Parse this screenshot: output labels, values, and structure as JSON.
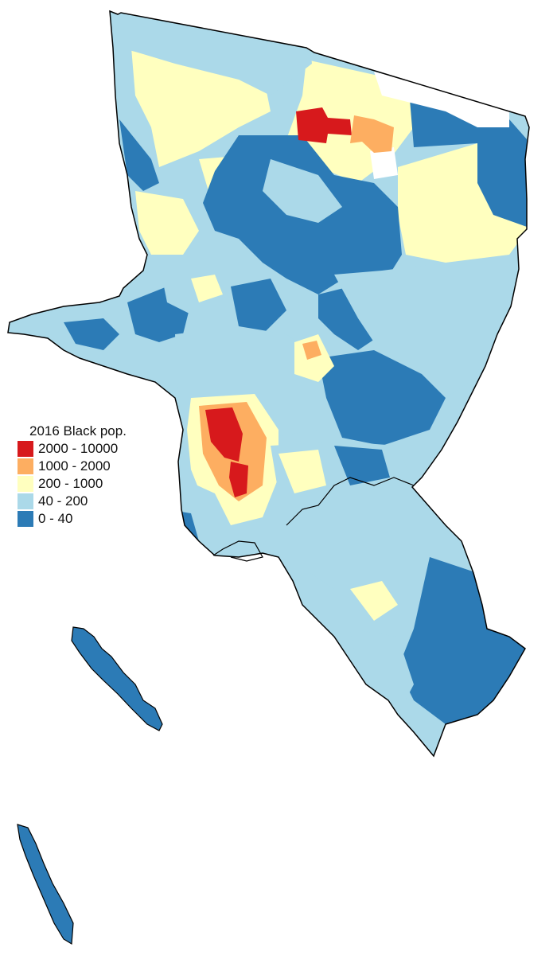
{
  "colors": {
    "class_2000_10000": "#d7191c",
    "class_1000_2000": "#fdae61",
    "class_200_1000": "#ffffbf",
    "class_40_200": "#abd9e9",
    "class_0_40": "#2c7bb6",
    "no_data": "#ffffff",
    "outline": "#000000"
  },
  "legend": {
    "title": "2016 Black pop.",
    "items": [
      {
        "label": "2000 - 10000",
        "color": "#d7191c"
      },
      {
        "label": "1000 - 2000",
        "color": "#fdae61"
      },
      {
        "label": "200 - 1000",
        "color": "#ffffbf"
      },
      {
        "label": "40 - 200",
        "color": "#abd9e9"
      },
      {
        "label": "0 - 40",
        "color": "#2c7bb6"
      }
    ]
  }
}
